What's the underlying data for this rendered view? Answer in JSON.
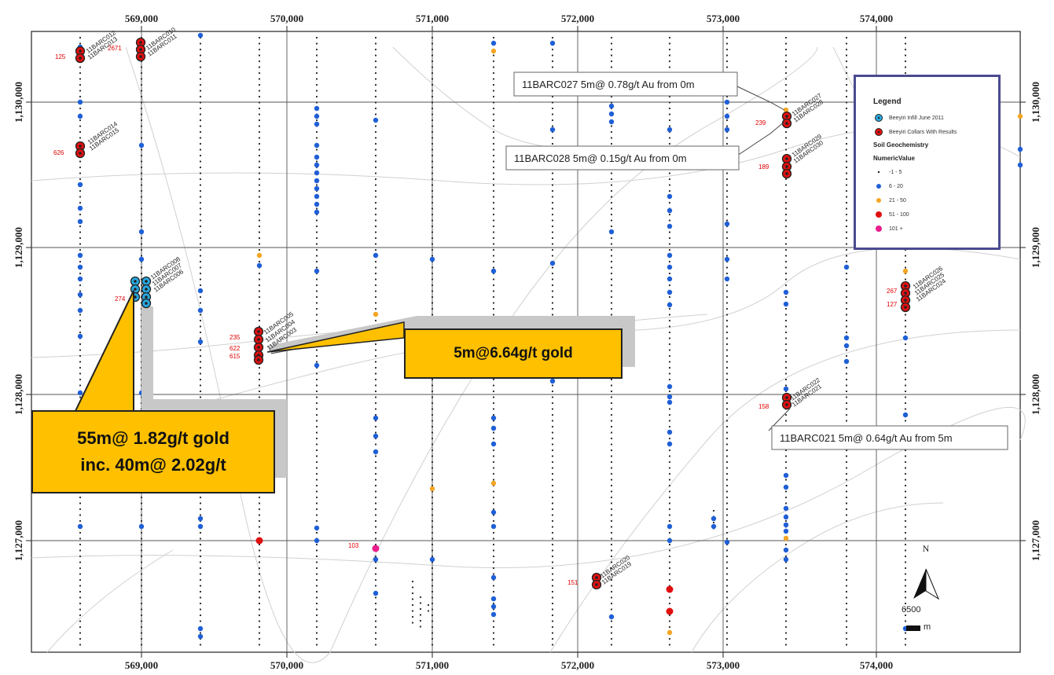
{
  "map": {
    "x_ticks": [
      "569,000",
      "570,000",
      "571,000",
      "572,000",
      "573,000",
      "574,000"
    ],
    "y_ticks": [
      "1,130,000",
      "1,129,000",
      "1,128,000",
      "1,127,000"
    ]
  },
  "hole_labels": [
    {
      "name": "11BARC012",
      "val": "125"
    },
    {
      "name": "11BARC013",
      "val": ""
    },
    {
      "name": "11BARC010",
      "val": "2671"
    },
    {
      "name": "11BARC011",
      "val": ""
    },
    {
      "name": "11BARC014",
      "val": "626"
    },
    {
      "name": "11BARC015",
      "val": ""
    },
    {
      "name": "11BARC008",
      "val": "274"
    },
    {
      "name": "11BARC007",
      "val": ""
    },
    {
      "name": "11BARC006",
      "val": ""
    },
    {
      "name": "11BARC005",
      "val": "235"
    },
    {
      "name": "11BARC004",
      "val": "622"
    },
    {
      "name": "11BARC003",
      "val": "615"
    },
    {
      "name": "11BARC027",
      "val": "239"
    },
    {
      "name": "11BARC028",
      "val": ""
    },
    {
      "name": "11BARC029",
      "val": "189"
    },
    {
      "name": "11BARC030",
      "val": ""
    },
    {
      "name": "11BARC026",
      "val": "267"
    },
    {
      "name": "11BARC025",
      "val": "127"
    },
    {
      "name": "11BARC024",
      "val": ""
    },
    {
      "name": "11BARC022",
      "val": "158"
    },
    {
      "name": "11BARC021",
      "val": ""
    },
    {
      "name": "11BARC020",
      "val": "151"
    },
    {
      "name": "11BARC019",
      "val": ""
    },
    {
      "name": "",
      "val": "103"
    }
  ],
  "callouts": {
    "c027": "11BARC027  5m@ 0.78g/t Au from 0m",
    "c028": "11BARC028  5m@ 0.15g/t Au from 0m",
    "c021": "11BARC021  5m@ 0.64g/t Au from 5m",
    "gold_mid": "5m@6.64g/t gold",
    "gold_left_1": "55m@ 1.82g/t gold",
    "gold_left_2": "inc. 40m@ 2.02g/t"
  },
  "legend": {
    "title": "Legend",
    "item1": "Beeyiri Infill June 2011",
    "item2": "Beeyiri Collars With Results",
    "section": "Soil Geochemistry",
    "field": "NumericValue",
    "classes": [
      {
        "label": "-1 - 5",
        "color": "#222222"
      },
      {
        "label": "6 - 20",
        "color": "#1f5fd6"
      },
      {
        "label": "21 - 50",
        "color": "#f5a623"
      },
      {
        "label": "51 - 100",
        "color": "#e01010"
      },
      {
        "label": "101 +",
        "color": "#e81e8c"
      }
    ]
  },
  "north_label": "N",
  "scale": {
    "value": "6500",
    "unit": "m"
  },
  "colors": {
    "frame": "#4b4a90",
    "callout_fill": "#ffc000",
    "infill": "#29a8e0",
    "result": "#e01010"
  }
}
